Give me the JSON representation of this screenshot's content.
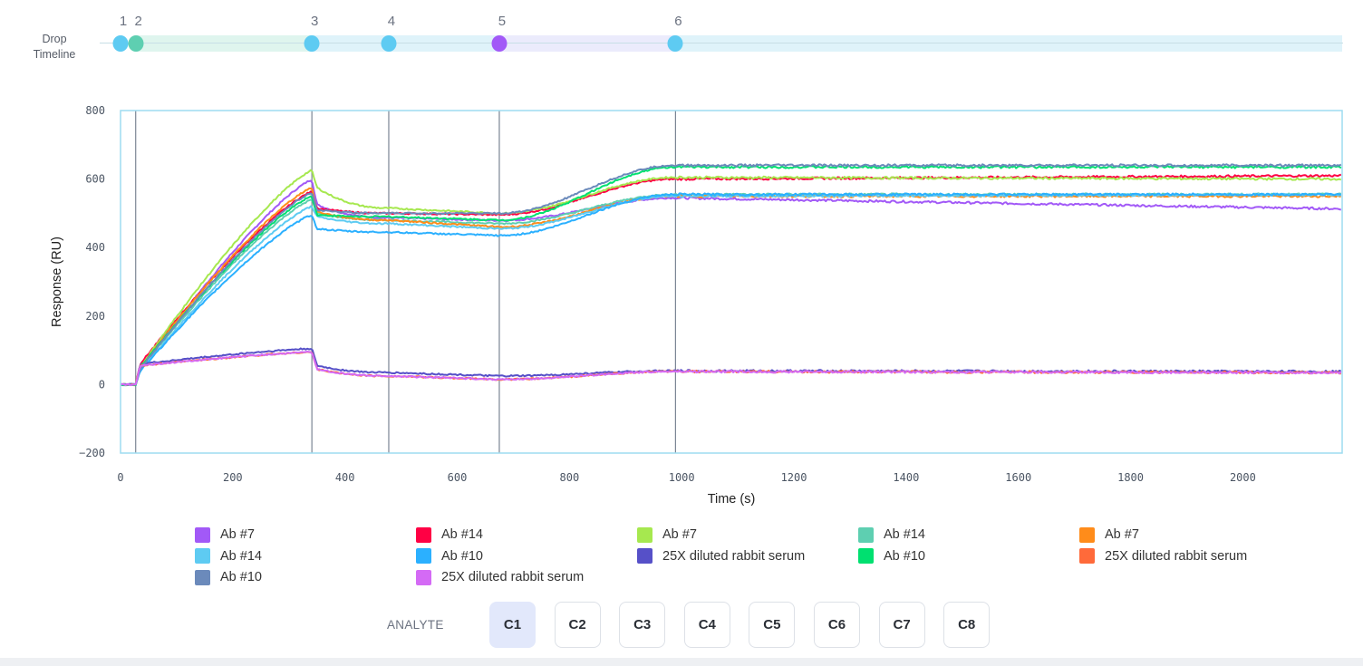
{
  "timeline": {
    "label_line1": "Drop",
    "label_line2": "Timeline",
    "drops": [
      {
        "number": "1",
        "time": 0,
        "color": "#5ecbf2"
      },
      {
        "number": "2",
        "time": 27,
        "color": "#5ecfb1"
      },
      {
        "number": "3",
        "time": 341,
        "color": "#5ecbf2"
      },
      {
        "number": "4",
        "time": 478,
        "color": "#5ecbf2"
      },
      {
        "number": "5",
        "time": 675,
        "color": "#a259f7"
      },
      {
        "number": "6",
        "time": 989,
        "color": "#5ecbf2"
      }
    ],
    "bands": [
      {
        "from": 27,
        "to": 341,
        "color": "#dff5ee"
      },
      {
        "from": 341,
        "to": 675,
        "color": "#dff3fa"
      },
      {
        "from": 675,
        "to": 989,
        "color": "#ebebfc"
      },
      {
        "from": 989,
        "to": 2177,
        "color": "#dff3fa"
      }
    ]
  },
  "chart_data": {
    "type": "line",
    "title": "",
    "xlabel": "Time (s)",
    "ylabel": "Response (RU)",
    "xlim": [
      0,
      2177
    ],
    "ylim": [
      -200,
      800
    ],
    "xticks": [
      0,
      200,
      400,
      600,
      800,
      1000,
      1200,
      1400,
      1600,
      1800,
      2000
    ],
    "yticks": [
      -200,
      0,
      200,
      400,
      600,
      800
    ],
    "grid": false,
    "legend_position": "bottom",
    "event_lines": [
      27,
      341,
      478,
      675,
      989
    ],
    "keypoint_times": [
      0,
      27,
      35,
      341,
      350,
      478,
      675,
      989,
      2177
    ],
    "series": [
      {
        "name": "Ab #7",
        "color": "#a259f7",
        "values": [
          0,
          0,
          40,
          598,
          525,
          487,
          479,
          545,
          513
        ]
      },
      {
        "name": "Ab #14",
        "color": "#ff0044",
        "values": [
          0,
          0,
          60,
          563,
          515,
          500,
          496,
          600,
          610
        ]
      },
      {
        "name": "Ab #7",
        "color": "#a6e84f",
        "values": [
          0,
          0,
          50,
          625,
          575,
          515,
          500,
          605,
          600
        ]
      },
      {
        "name": "Ab #14",
        "color": "#5ecfb1",
        "values": [
          0,
          0,
          45,
          540,
          500,
          480,
          470,
          555,
          555
        ]
      },
      {
        "name": "Ab #7",
        "color": "#ff8c1a",
        "values": [
          0,
          0,
          50,
          575,
          505,
          480,
          460,
          550,
          550
        ]
      },
      {
        "name": "Ab #14",
        "color": "#5ecbf2",
        "values": [
          0,
          0,
          40,
          520,
          490,
          470,
          455,
          550,
          555
        ]
      },
      {
        "name": "Ab #10",
        "color": "#2bb0ff",
        "values": [
          0,
          0,
          40,
          495,
          455,
          445,
          435,
          555,
          555
        ]
      },
      {
        "name": "25X diluted rabbit serum",
        "color": "#5650c8",
        "values": [
          0,
          0,
          60,
          105,
          55,
          35,
          25,
          40,
          38
        ]
      },
      {
        "name": "Ab #10",
        "color": "#00e070",
        "values": [
          0,
          0,
          50,
          550,
          495,
          490,
          480,
          635,
          635
        ]
      },
      {
        "name": "25X diluted rabbit serum",
        "color": "#ff6a3a",
        "values": [
          0,
          0,
          55,
          95,
          45,
          25,
          15,
          38,
          35
        ]
      },
      {
        "name": "Ab #10",
        "color": "#6b8abb",
        "values": [
          0,
          0,
          45,
          560,
          510,
          500,
          500,
          640,
          640
        ]
      },
      {
        "name": "25X diluted rabbit serum",
        "color": "#d46af5",
        "values": [
          0,
          0,
          55,
          95,
          45,
          25,
          15,
          38,
          35
        ]
      }
    ]
  },
  "analyte": {
    "label": "ANALYTE",
    "selected": "C1",
    "options": [
      "C1",
      "C2",
      "C3",
      "C4",
      "C5",
      "C6",
      "C7",
      "C8"
    ]
  }
}
